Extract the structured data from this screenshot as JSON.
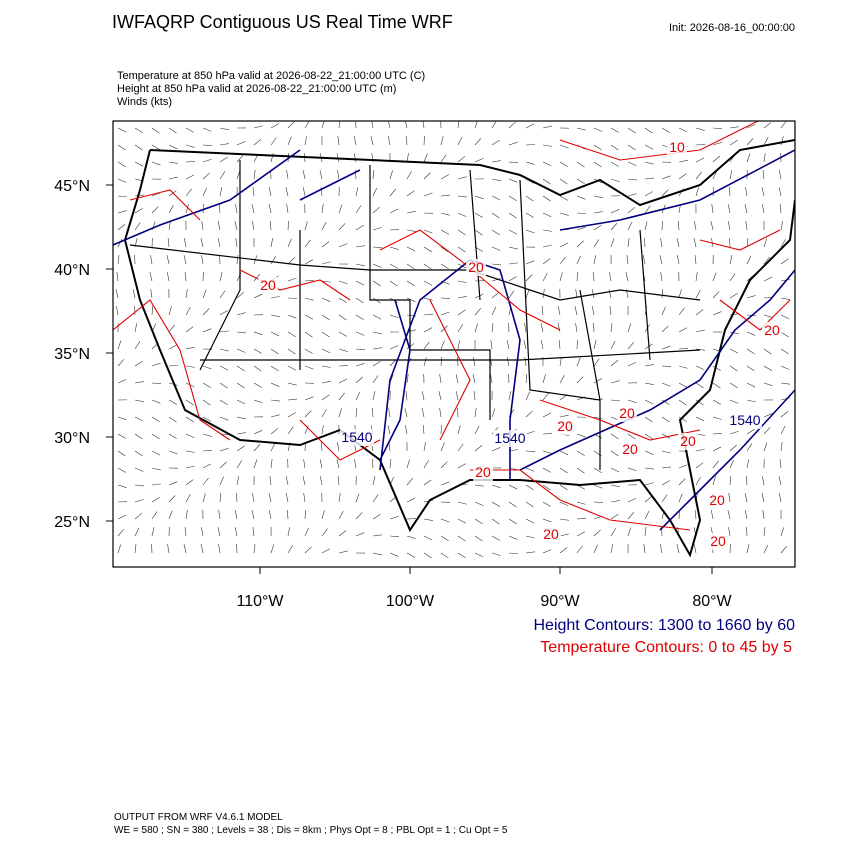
{
  "header": {
    "title": "IWFAQRP Contiguous US Real Time WRF",
    "init": "Init: 2026-08-16_00:00:00",
    "fields": [
      "Temperature at 850 hPa valid at 2026-08-22_21:00:00 UTC   (C)",
      "Height at 850 hPa valid at 2026-08-22_21:00:00 UTC   (m)",
      "Winds   (kts)"
    ]
  },
  "map": {
    "lat_labels": [
      "45°N",
      "40°N",
      "35°N",
      "30°N",
      "25°N"
    ],
    "lon_labels": [
      "110°W",
      "100°W",
      "90°W",
      "80°W"
    ],
    "height_contour_labels": [
      "1540",
      "1540",
      "1540"
    ],
    "temperature_contour_labels": [
      "10",
      "20",
      "20",
      "20",
      "20",
      "20",
      "20",
      "20",
      "20",
      "20",
      "20",
      "20"
    ]
  },
  "legend": {
    "height": "Height Contours: 1300 to 1660 by 60",
    "temperature": "Temperature Contours: 0 to 45 by 5"
  },
  "footer": {
    "model": "OUTPUT FROM WRF V4.6.1 MODEL",
    "settings": "WE = 580 ; SN = 380 ; Levels = 38 ; Dis = 8km ; Phys Opt = 8 ; PBL Opt = 1 ; Cu Opt = 5"
  }
}
